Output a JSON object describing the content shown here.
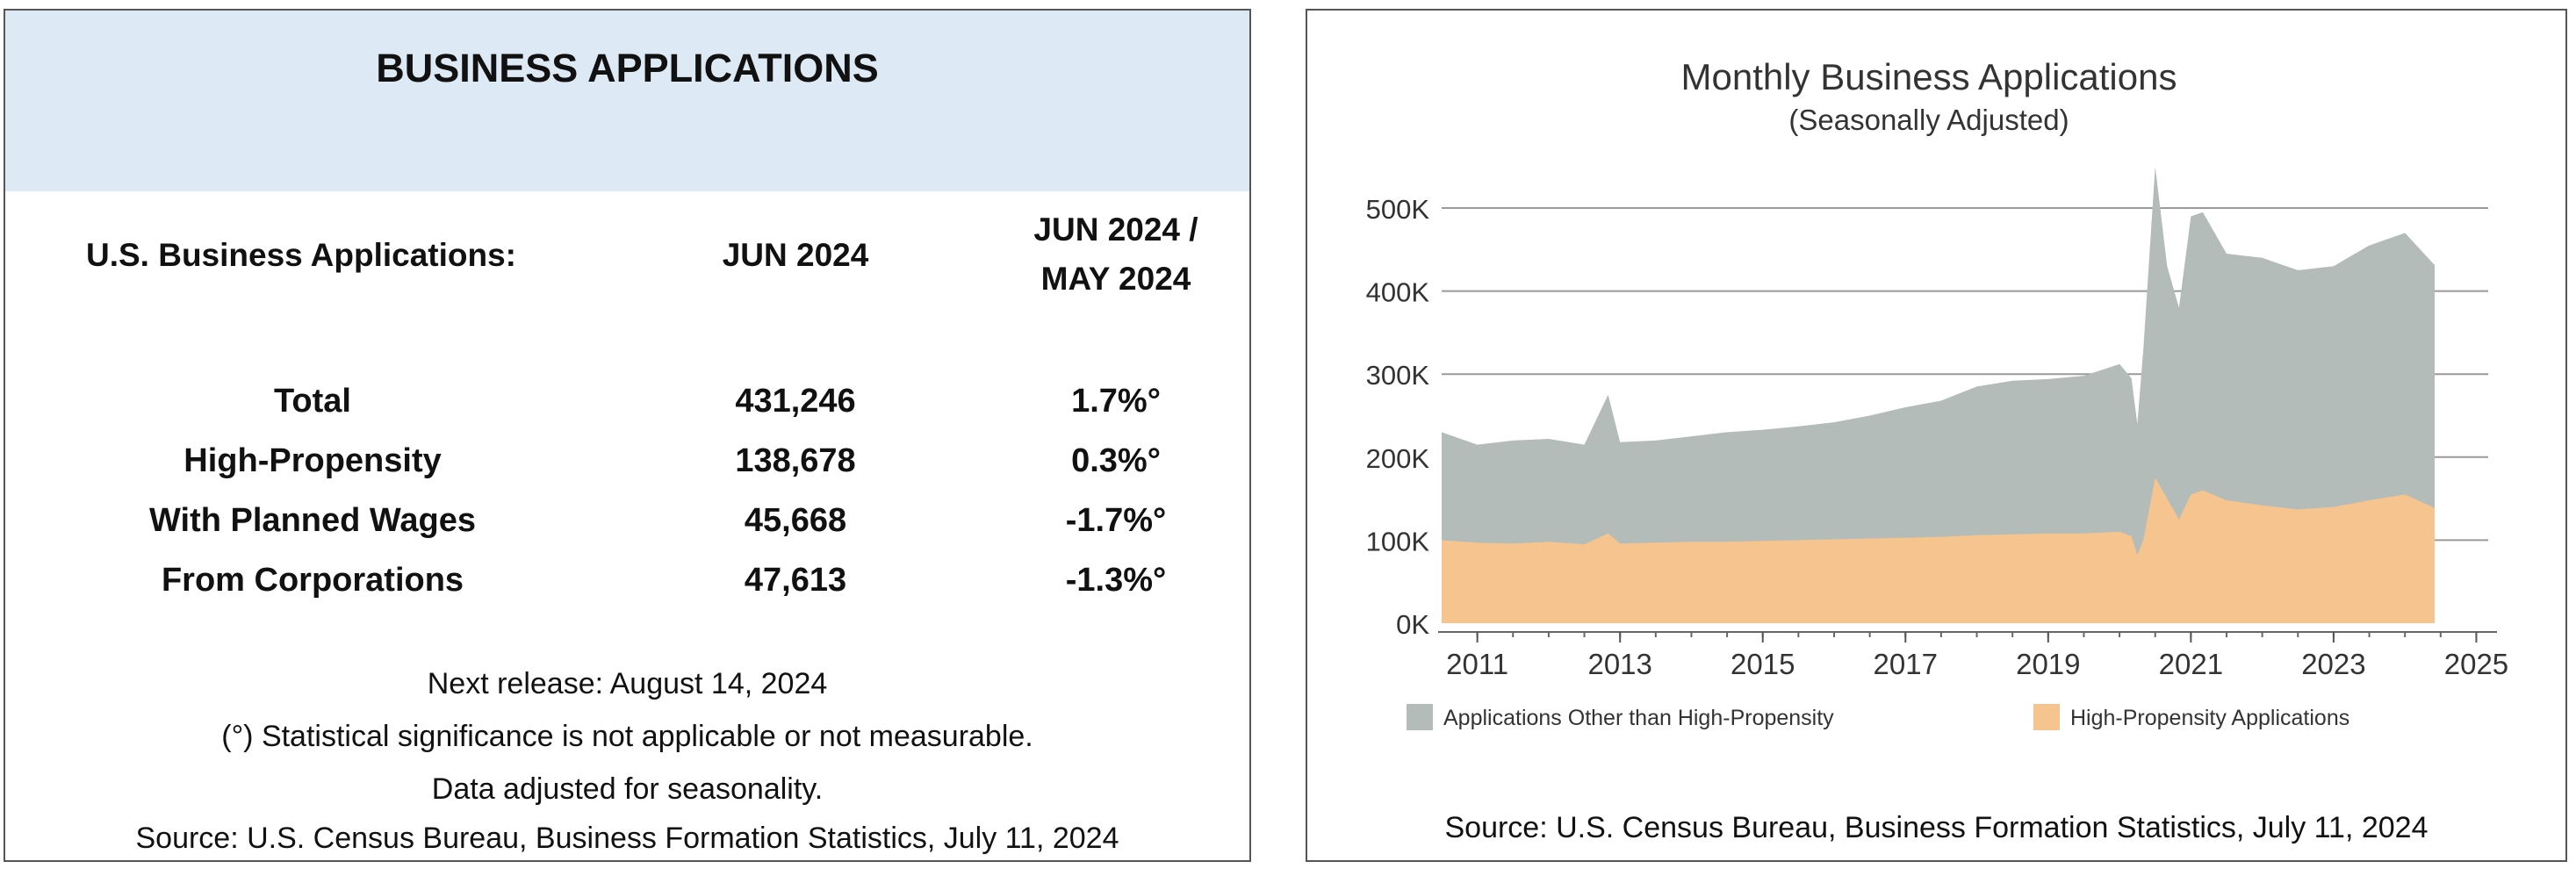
{
  "left": {
    "title": "BUSINESS APPLICATIONS",
    "header": {
      "label": "U.S. Business Applications:",
      "col1": "JUN 2024",
      "col2_line1": "JUN 2024 /",
      "col2_line2": "MAY 2024"
    },
    "rows": [
      {
        "label": "Total",
        "value": "431,246",
        "change": "1.7%°"
      },
      {
        "label": "High-Propensity",
        "value": "138,678",
        "change": "0.3%°"
      },
      {
        "label": "With Planned Wages",
        "value": "45,668",
        "change": "-1.7%°"
      },
      {
        "label": "From Corporations",
        "value": "47,613",
        "change": "-1.3%°"
      }
    ],
    "notes": [
      "Next release: August 14, 2024",
      "(°) Statistical significance is not applicable or not measurable.",
      "Data adjusted for seasonality.",
      "Source: U.S. Census Bureau, Business Formation Statistics, July 11, 2024"
    ]
  },
  "chart_data": {
    "type": "area",
    "title": "Monthly Business Applications",
    "subtitle": "(Seasonally Adjusted)",
    "xlabel": "",
    "ylabel": "",
    "ylim": [
      0,
      500000
    ],
    "xlim": [
      "2010-07",
      "2025-03"
    ],
    "y_ticks": [
      0,
      100000,
      200000,
      300000,
      400000,
      500000
    ],
    "y_tick_labels": [
      "0K",
      "100K",
      "200K",
      "300K",
      "400K",
      "500K"
    ],
    "x_ticks": [
      "2011-01",
      "2013-01",
      "2015-01",
      "2017-01",
      "2019-01",
      "2021-01",
      "2023-01",
      "2025-01"
    ],
    "x_tick_labels": [
      "2011",
      "2013",
      "2015",
      "2017",
      "2019",
      "2021",
      "2023",
      "2025"
    ],
    "grid": "horizontal",
    "legend_position": "bottom",
    "stacked": true,
    "series": [
      {
        "name": "High-Propensity Applications",
        "color": "#f5c48f",
        "points": [
          [
            "2010-07",
            100000
          ],
          [
            "2011-01",
            97000
          ],
          [
            "2011-07",
            96000
          ],
          [
            "2012-01",
            98000
          ],
          [
            "2012-07",
            95000
          ],
          [
            "2012-11",
            108000
          ],
          [
            "2013-01",
            96000
          ],
          [
            "2013-07",
            97000
          ],
          [
            "2014-01",
            98000
          ],
          [
            "2014-07",
            98000
          ],
          [
            "2015-01",
            99000
          ],
          [
            "2015-07",
            100000
          ],
          [
            "2016-01",
            101000
          ],
          [
            "2016-07",
            102000
          ],
          [
            "2017-01",
            103000
          ],
          [
            "2017-07",
            104000
          ],
          [
            "2018-01",
            106000
          ],
          [
            "2018-07",
            107000
          ],
          [
            "2019-01",
            108000
          ],
          [
            "2019-07",
            108000
          ],
          [
            "2020-01",
            110000
          ],
          [
            "2020-03",
            105000
          ],
          [
            "2020-04",
            82000
          ],
          [
            "2020-05",
            100000
          ],
          [
            "2020-07",
            175000
          ],
          [
            "2020-09",
            150000
          ],
          [
            "2020-11",
            125000
          ],
          [
            "2021-01",
            155000
          ],
          [
            "2021-03",
            160000
          ],
          [
            "2021-07",
            148000
          ],
          [
            "2022-01",
            142000
          ],
          [
            "2022-07",
            137000
          ],
          [
            "2023-01",
            140000
          ],
          [
            "2023-07",
            148000
          ],
          [
            "2024-01",
            155000
          ],
          [
            "2024-06",
            138678
          ]
        ]
      },
      {
        "name": "Applications Other than High-Propensity",
        "color": "#b3bcb8",
        "total_points": [
          [
            "2010-07",
            230000
          ],
          [
            "2011-01",
            215000
          ],
          [
            "2011-07",
            220000
          ],
          [
            "2012-01",
            222000
          ],
          [
            "2012-07",
            215000
          ],
          [
            "2012-11",
            275000
          ],
          [
            "2013-01",
            218000
          ],
          [
            "2013-07",
            220000
          ],
          [
            "2014-01",
            225000
          ],
          [
            "2014-07",
            230000
          ],
          [
            "2015-01",
            233000
          ],
          [
            "2015-07",
            237000
          ],
          [
            "2016-01",
            242000
          ],
          [
            "2016-07",
            250000
          ],
          [
            "2017-01",
            260000
          ],
          [
            "2017-07",
            268000
          ],
          [
            "2018-01",
            285000
          ],
          [
            "2018-07",
            292000
          ],
          [
            "2019-01",
            294000
          ],
          [
            "2019-07",
            298000
          ],
          [
            "2020-01",
            312000
          ],
          [
            "2020-03",
            295000
          ],
          [
            "2020-04",
            240000
          ],
          [
            "2020-05",
            330000
          ],
          [
            "2020-07",
            550000
          ],
          [
            "2020-09",
            430000
          ],
          [
            "2020-11",
            380000
          ],
          [
            "2021-01",
            490000
          ],
          [
            "2021-03",
            495000
          ],
          [
            "2021-07",
            445000
          ],
          [
            "2022-01",
            440000
          ],
          [
            "2022-07",
            425000
          ],
          [
            "2023-01",
            430000
          ],
          [
            "2023-07",
            455000
          ],
          [
            "2024-01",
            470000
          ],
          [
            "2024-06",
            431246
          ]
        ]
      }
    ],
    "source": "Source: U.S. Census Bureau, Business Formation Statistics, July 11, 2024"
  }
}
